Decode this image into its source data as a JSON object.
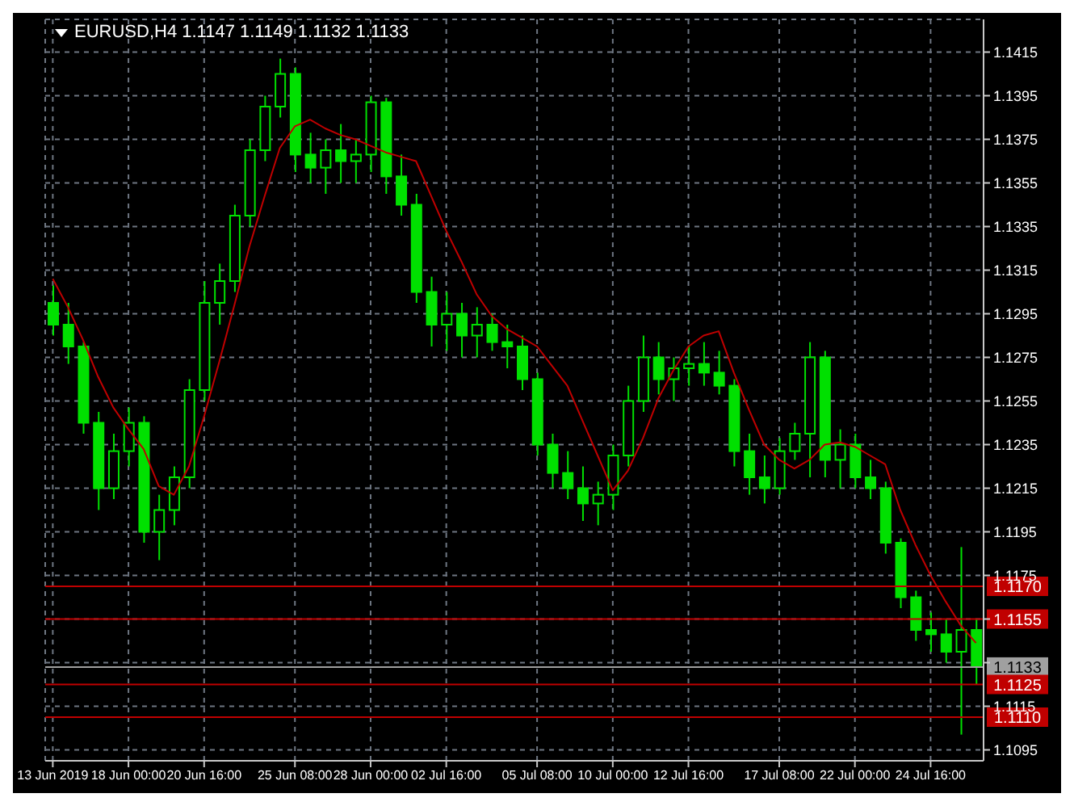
{
  "chart_data": {
    "type": "candlestick",
    "title": "EURUSD,H4 1.1147 1.1149 1.1132 1.1133",
    "color": "#00e000",
    "categories": [
      "13 Jun 2019",
      null,
      null,
      null,
      null,
      "18 Jun 00:00",
      null,
      null,
      null,
      null,
      "20 Jun 16:00",
      null,
      null,
      null,
      null,
      null,
      "25 Jun 08:00",
      null,
      null,
      null,
      null,
      "28 Jun 00:00",
      null,
      null,
      null,
      null,
      "02 Jul 16:00",
      null,
      null,
      null,
      null,
      null,
      "05 Jul 08:00",
      null,
      null,
      null,
      null,
      "10 Jul 00:00",
      null,
      null,
      null,
      null,
      "12 Jul 16:00",
      null,
      null,
      null,
      null,
      null,
      "17 Jul 08:00",
      null,
      null,
      null,
      null,
      "22 Jul 00:00",
      null,
      null,
      null,
      null,
      "24 Jul 16:00",
      null,
      null,
      null
    ],
    "ohlc": [
      [
        1.13,
        1.1308,
        1.1285,
        1.129
      ],
      [
        1.129,
        1.13,
        1.1272,
        1.128
      ],
      [
        1.128,
        1.1282,
        1.124,
        1.1245
      ],
      [
        1.1245,
        1.125,
        1.1205,
        1.1215
      ],
      [
        1.1215,
        1.124,
        1.121,
        1.1232
      ],
      [
        1.1232,
        1.1252,
        1.1225,
        1.1245
      ],
      [
        1.1245,
        1.1248,
        1.119,
        1.1195
      ],
      [
        1.1195,
        1.1212,
        1.1182,
        1.1205
      ],
      [
        1.1205,
        1.1225,
        1.1198,
        1.122
      ],
      [
        1.122,
        1.1265,
        1.1215,
        1.126
      ],
      [
        1.126,
        1.131,
        1.1255,
        1.13
      ],
      [
        1.13,
        1.1318,
        1.129,
        1.131
      ],
      [
        1.131,
        1.1345,
        1.1305,
        1.134
      ],
      [
        1.134,
        1.1375,
        1.1335,
        1.137
      ],
      [
        1.137,
        1.1395,
        1.1365,
        1.139
      ],
      [
        1.139,
        1.1412,
        1.1385,
        1.1405
      ],
      [
        1.1405,
        1.1408,
        1.136,
        1.1368
      ],
      [
        1.1368,
        1.1378,
        1.1355,
        1.1362
      ],
      [
        1.1362,
        1.1375,
        1.135,
        1.137
      ],
      [
        1.137,
        1.1382,
        1.1355,
        1.1365
      ],
      [
        1.1365,
        1.1375,
        1.1355,
        1.1368
      ],
      [
        1.1368,
        1.1395,
        1.136,
        1.1392
      ],
      [
        1.1392,
        1.1394,
        1.135,
        1.1358
      ],
      [
        1.1358,
        1.1368,
        1.134,
        1.1345
      ],
      [
        1.1345,
        1.135,
        1.13,
        1.1305
      ],
      [
        1.1305,
        1.1312,
        1.128,
        1.129
      ],
      [
        1.129,
        1.1305,
        1.1278,
        1.1295
      ],
      [
        1.1295,
        1.13,
        1.1275,
        1.1285
      ],
      [
        1.1285,
        1.1298,
        1.1275,
        1.129
      ],
      [
        1.129,
        1.1295,
        1.1278,
        1.1282
      ],
      [
        1.1282,
        1.129,
        1.127,
        1.128
      ],
      [
        1.128,
        1.1285,
        1.126,
        1.1265
      ],
      [
        1.1265,
        1.1268,
        1.123,
        1.1235
      ],
      [
        1.1235,
        1.124,
        1.1215,
        1.1222
      ],
      [
        1.1222,
        1.1232,
        1.121,
        1.1215
      ],
      [
        1.1215,
        1.1225,
        1.12,
        1.1208
      ],
      [
        1.1208,
        1.1218,
        1.1198,
        1.1212
      ],
      [
        1.1212,
        1.1235,
        1.1205,
        1.123
      ],
      [
        1.123,
        1.1262,
        1.1225,
        1.1255
      ],
      [
        1.1255,
        1.1285,
        1.125,
        1.1275
      ],
      [
        1.1275,
        1.1282,
        1.1258,
        1.1265
      ],
      [
        1.1265,
        1.1275,
        1.1255,
        1.127
      ],
      [
        1.127,
        1.128,
        1.1262,
        1.1272
      ],
      [
        1.1272,
        1.1282,
        1.1262,
        1.1268
      ],
      [
        1.1268,
        1.1278,
        1.1258,
        1.1262
      ],
      [
        1.1262,
        1.1265,
        1.1225,
        1.1232
      ],
      [
        1.1232,
        1.124,
        1.1212,
        1.122
      ],
      [
        1.122,
        1.123,
        1.1208,
        1.1215
      ],
      [
        1.1215,
        1.1238,
        1.1212,
        1.1232
      ],
      [
        1.1232,
        1.1245,
        1.1228,
        1.124
      ],
      [
        1.124,
        1.1282,
        1.122,
        1.1275
      ],
      [
        1.1275,
        1.1278,
        1.122,
        1.1228
      ],
      [
        1.1228,
        1.1242,
        1.1215,
        1.1235
      ],
      [
        1.1235,
        1.124,
        1.1215,
        1.122
      ],
      [
        1.122,
        1.1228,
        1.121,
        1.1215
      ],
      [
        1.1215,
        1.1218,
        1.1185,
        1.119
      ],
      [
        1.119,
        1.1192,
        1.116,
        1.1165
      ],
      [
        1.1165,
        1.1168,
        1.1145,
        1.115
      ],
      [
        1.115,
        1.1158,
        1.114,
        1.1148
      ],
      [
        1.1148,
        1.1155,
        1.1135,
        1.114
      ],
      [
        1.114,
        1.1188,
        1.1102,
        1.115
      ],
      [
        1.115,
        1.1155,
        1.1125,
        1.1133
      ]
    ],
    "series": [
      {
        "type": "line",
        "color": "#c00000",
        "values": [
          1.1311,
          1.1298,
          1.1283,
          1.1266,
          1.1252,
          1.1242,
          1.1233,
          1.1216,
          1.1212,
          1.1225,
          1.1248,
          1.1273,
          1.1299,
          1.1326,
          1.1349,
          1.1371,
          1.1381,
          1.1384,
          1.138,
          1.1377,
          1.1375,
          1.1372,
          1.1369,
          1.1367,
          1.1365,
          1.1349,
          1.1333,
          1.1319,
          1.1304,
          1.1294,
          1.1288,
          1.1284,
          1.128,
          1.1271,
          1.1262,
          1.1246,
          1.123,
          1.1214,
          1.1223,
          1.1238,
          1.1256,
          1.1269,
          1.128,
          1.1285,
          1.1287,
          1.1268,
          1.1251,
          1.1235,
          1.1228,
          1.1224,
          1.1228,
          1.1235,
          1.1236,
          1.1234,
          1.123,
          1.1226,
          1.1205,
          1.1189,
          1.1175,
          1.1163,
          1.1152,
          1.1144
        ]
      }
    ],
    "ylim": [
      1.109,
      1.143
    ],
    "yticks": [
      1.1095,
      1.1115,
      {
        "value": 1.1135,
        "label": null
      },
      {
        "value": 1.1155,
        "label": null
      },
      1.1175,
      1.1195,
      1.1215,
      1.1235,
      1.1255,
      1.1275,
      1.1295,
      1.1315,
      1.1335,
      1.1355,
      1.1375,
      1.1395,
      1.1415
    ],
    "grid": true,
    "ref_lines": [
      {
        "axis": "y",
        "value": 1.117,
        "label": "1.1170",
        "color": "#c00000"
      },
      {
        "axis": "y",
        "value": 1.1155,
        "label": "1.1155",
        "color": "#c00000"
      },
      {
        "axis": "y",
        "value": 1.1133,
        "label": "1.1133",
        "color": "#a0a0a0"
      },
      {
        "axis": "y",
        "value": 1.1125,
        "label": "1.1125",
        "color": "#c00000"
      },
      {
        "axis": "y",
        "value": 1.111,
        "label": "1.1110",
        "color": "#c00000"
      }
    ]
  }
}
